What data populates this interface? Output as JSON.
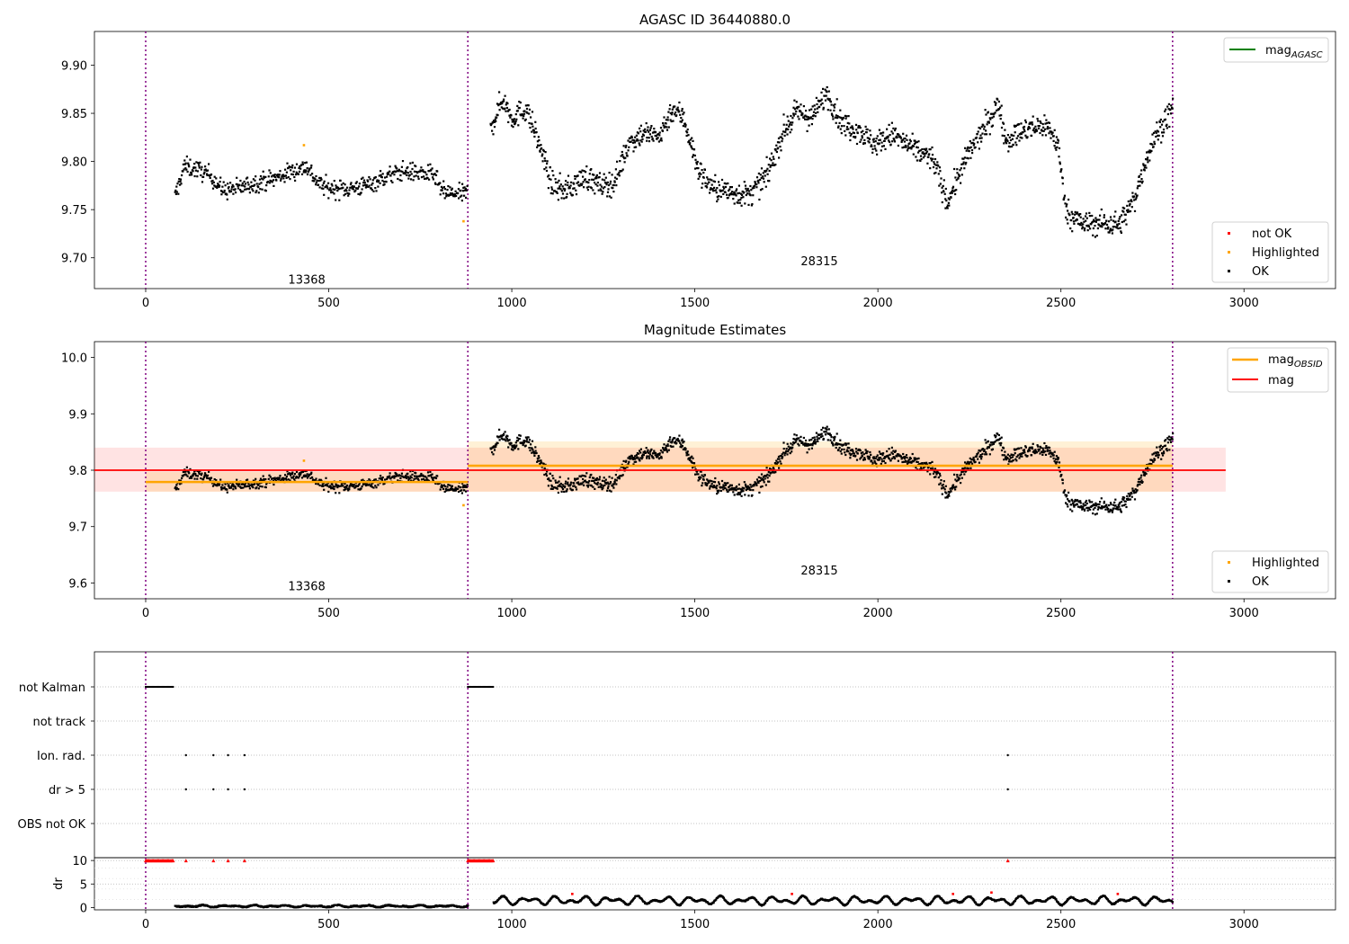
{
  "chart_data": [
    {
      "id": "p1",
      "type": "scatter",
      "title": "AGASC ID 36440880.0",
      "xlim": [
        -140,
        3250
      ],
      "ylim": [
        9.668,
        9.935
      ],
      "xticks": [
        0,
        500,
        1000,
        1500,
        2000,
        2500,
        3000
      ],
      "yticks": [
        9.7,
        9.75,
        9.8,
        9.85,
        9.9
      ],
      "ytick_labels": [
        "9.70",
        "9.75",
        "9.80",
        "9.85",
        "9.90"
      ],
      "grid": false,
      "obs_boundaries": [
        0,
        880,
        2805
      ],
      "obs_labels": [
        {
          "text": "13368",
          "x": 440,
          "y": 9.678
        },
        {
          "text": "28315",
          "x": 1840,
          "y": 9.697
        }
      ],
      "line_legend": {
        "position": "top-right",
        "entries": [
          {
            "label": "mag",
            "sub": "AGASC",
            "color": "#008000"
          }
        ]
      },
      "scatter_legend": {
        "position": "bottom-right",
        "entries": [
          {
            "label": "not OK",
            "color": "#ff0000"
          },
          {
            "label": "Highlighted",
            "color": "#ffa500"
          },
          {
            "label": "OK",
            "color": "#000000"
          }
        ]
      },
      "highlighted_points": [
        {
          "x": 432,
          "y": 9.817
        },
        {
          "x": 868,
          "y": 9.738
        }
      ]
    },
    {
      "id": "p2",
      "type": "scatter",
      "title": "Magnitude Estimates",
      "xlim": [
        -140,
        3250
      ],
      "ylim": [
        9.572,
        10.028
      ],
      "xticks": [
        0,
        500,
        1000,
        1500,
        2000,
        2500,
        3000
      ],
      "yticks": [
        9.6,
        9.7,
        9.8,
        9.9,
        10.0
      ],
      "ytick_labels": [
        "9.6",
        "9.7",
        "9.8",
        "9.9",
        "10.0"
      ],
      "grid": false,
      "obs_boundaries": [
        0,
        880,
        2805
      ],
      "obs_labels": [
        {
          "text": "13368",
          "x": 440,
          "y": 9.595
        },
        {
          "text": "28315",
          "x": 1840,
          "y": 9.623
        }
      ],
      "mag": {
        "value": 9.8,
        "band": [
          9.762,
          9.84
        ],
        "xrange": [
          -140,
          2950
        ],
        "color": "#ff0000"
      },
      "obsid_mags": [
        {
          "xrange": [
            0,
            880
          ],
          "value": 9.779,
          "band": [
            9.762,
            9.797
          ],
          "color": "#ffa500"
        },
        {
          "xrange": [
            880,
            2805
          ],
          "value": 9.808,
          "band": [
            9.762,
            9.851
          ],
          "color": "#ffa500"
        }
      ],
      "line_legend": {
        "position": "top-right",
        "entries": [
          {
            "label": "mag",
            "sub": "OBSID",
            "color": "#ffa500"
          },
          {
            "label": "mag",
            "sub": "",
            "color": "#ff0000"
          }
        ]
      },
      "scatter_legend": {
        "position": "bottom-right",
        "entries": [
          {
            "label": "Highlighted",
            "color": "#ffa500"
          },
          {
            "label": "OK",
            "color": "#000000"
          }
        ]
      },
      "highlighted_points": [
        {
          "x": 432,
          "y": 9.817
        },
        {
          "x": 868,
          "y": 9.738
        }
      ]
    },
    {
      "id": "p3",
      "type": "scatter",
      "xlim": [
        -140,
        3250
      ],
      "categories": [
        "not Kalman",
        "not track",
        "Ion. rad.",
        "dr > 5",
        "OBS not OK"
      ],
      "flag_ranges": [
        {
          "category": "not Kalman",
          "segments": [
            [
              0,
              75
            ],
            [
              880,
              950
            ]
          ]
        }
      ],
      "flag_points": [
        {
          "category": "Ion. rad.",
          "x": [
            110,
            185,
            225,
            270,
            2355
          ]
        },
        {
          "category": "dr > 5",
          "x": [
            110,
            185,
            225,
            270,
            2355
          ]
        }
      ],
      "grid": true,
      "obs_boundaries": [
        0,
        880,
        2805
      ]
    },
    {
      "id": "p4",
      "type": "scatter",
      "ylabel": "dr",
      "xlim": [
        -140,
        3250
      ],
      "ylim": [
        -0.5,
        10.6
      ],
      "yticks": [
        0,
        5,
        10
      ],
      "xticks": [
        0,
        500,
        1000,
        1500,
        2000,
        2500,
        3000
      ],
      "grid": true,
      "obs_boundaries": [
        0,
        880,
        2805
      ],
      "segments": [
        {
          "from": 80,
          "to": 880,
          "mean": 0.3,
          "amp": 0.25
        },
        {
          "from": 950,
          "to": 2805,
          "mean": 1.5,
          "amp": 1.0
        }
      ],
      "clipped_ranges": [
        [
          0,
          75
        ],
        [
          880,
          950
        ]
      ],
      "clipped_points": [
        110,
        185,
        225,
        270,
        2355
      ],
      "red_points": [
        {
          "x": 1165,
          "y": 2.9
        },
        {
          "x": 1765,
          "y": 2.9
        },
        {
          "x": 2205,
          "y": 2.9
        },
        {
          "x": 2310,
          "y": 3.2
        },
        {
          "x": 2655,
          "y": 2.9
        }
      ]
    }
  ],
  "series_model": {
    "obs1": {
      "from": 80,
      "to": 878,
      "knots": [
        [
          80,
          9.763
        ],
        [
          105,
          9.795
        ],
        [
          140,
          9.792
        ],
        [
          180,
          9.785
        ],
        [
          210,
          9.77
        ],
        [
          250,
          9.772
        ],
        [
          300,
          9.778
        ],
        [
          350,
          9.782
        ],
        [
          400,
          9.79
        ],
        [
          440,
          9.795
        ],
        [
          470,
          9.778
        ],
        [
          500,
          9.772
        ],
        [
          560,
          9.772
        ],
        [
          600,
          9.775
        ],
        [
          650,
          9.783
        ],
        [
          700,
          9.79
        ],
        [
          750,
          9.788
        ],
        [
          790,
          9.785
        ],
        [
          810,
          9.768
        ],
        [
          850,
          9.766
        ],
        [
          878,
          9.767
        ]
      ],
      "noise": 0.0095,
      "n": 560
    },
    "obs2": {
      "from": 942,
      "to": 2805,
      "knots": [
        [
          942,
          9.835
        ],
        [
          975,
          9.865
        ],
        [
          1000,
          9.845
        ],
        [
          1040,
          9.855
        ],
        [
          1080,
          9.812
        ],
        [
          1110,
          9.775
        ],
        [
          1150,
          9.77
        ],
        [
          1200,
          9.785
        ],
        [
          1240,
          9.775
        ],
        [
          1280,
          9.778
        ],
        [
          1320,
          9.82
        ],
        [
          1360,
          9.83
        ],
        [
          1400,
          9.825
        ],
        [
          1440,
          9.855
        ],
        [
          1470,
          9.845
        ],
        [
          1510,
          9.79
        ],
        [
          1550,
          9.772
        ],
        [
          1600,
          9.768
        ],
        [
          1650,
          9.765
        ],
        [
          1700,
          9.788
        ],
        [
          1740,
          9.83
        ],
        [
          1780,
          9.852
        ],
        [
          1820,
          9.845
        ],
        [
          1860,
          9.872
        ],
        [
          1900,
          9.84
        ],
        [
          1950,
          9.832
        ],
        [
          1990,
          9.818
        ],
        [
          2040,
          9.828
        ],
        [
          2100,
          9.812
        ],
        [
          2150,
          9.803
        ],
        [
          2190,
          9.758
        ],
        [
          2220,
          9.785
        ],
        [
          2250,
          9.81
        ],
        [
          2300,
          9.84
        ],
        [
          2330,
          9.86
        ],
        [
          2350,
          9.822
        ],
        [
          2400,
          9.832
        ],
        [
          2460,
          9.838
        ],
        [
          2490,
          9.82
        ],
        [
          2515,
          9.748
        ],
        [
          2560,
          9.735
        ],
        [
          2620,
          9.736
        ],
        [
          2660,
          9.735
        ],
        [
          2700,
          9.76
        ],
        [
          2730,
          9.8
        ],
        [
          2760,
          9.828
        ],
        [
          2805,
          9.855
        ]
      ],
      "noise": 0.0125,
      "n": 1500
    }
  }
}
